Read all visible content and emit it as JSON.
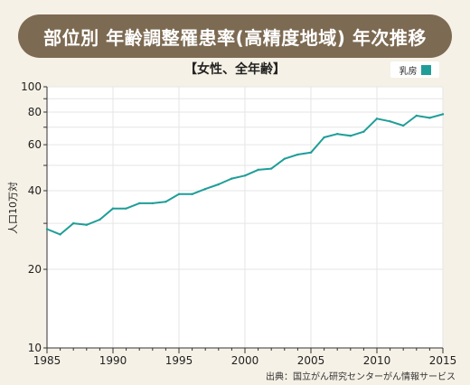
{
  "title": "部位別 年齢調整罹患率(高精度地域) 年次推移",
  "subtitle": "【女性、全年齢】",
  "legend_label": "乳房",
  "ylabel": "人口10万対",
  "source": "出典：国立がん研究センターがん情報サービス",
  "colors": {
    "banner": "#7d6a52",
    "background": "#f6f1e6",
    "plot_background": "#ffffff",
    "line": "#1f9e98",
    "grid": "#e6e6e6"
  },
  "chart_data": {
    "type": "line",
    "title": "部位別 年齢調整罹患率(高精度地域) 年次推移",
    "subtitle": "【女性、全年齢】",
    "xlabel": "",
    "ylabel": "人口10万対",
    "y_scale": "log",
    "ylim": [
      10,
      100
    ],
    "xlim": [
      1985,
      2015
    ],
    "grid": true,
    "legend_position": "top-right",
    "x_ticks": [
      "1985",
      "1990",
      "1995",
      "2000",
      "2005",
      "2010",
      "2015"
    ],
    "y_ticks": [
      "10",
      "20",
      "40",
      "60",
      "80",
      "100"
    ],
    "series": [
      {
        "name": "乳房",
        "x": [
          1985,
          1986,
          1987,
          1988,
          1989,
          1990,
          1991,
          1992,
          1993,
          1994,
          1995,
          1996,
          1997,
          1998,
          1999,
          2000,
          2001,
          2002,
          2003,
          2004,
          2005,
          2006,
          2007,
          2008,
          2009,
          2010,
          2011,
          2012,
          2013,
          2014,
          2015
        ],
        "values": [
          28.5,
          27.2,
          30.0,
          29.6,
          31.0,
          34.2,
          34.2,
          35.8,
          35.8,
          36.3,
          38.8,
          38.8,
          40.6,
          42.3,
          44.5,
          45.7,
          48.1,
          48.6,
          53.0,
          55.0,
          56.0,
          64.0,
          66.0,
          64.9,
          67.3,
          75.5,
          73.7,
          71.0,
          77.5,
          76.0,
          78.5
        ]
      }
    ]
  }
}
